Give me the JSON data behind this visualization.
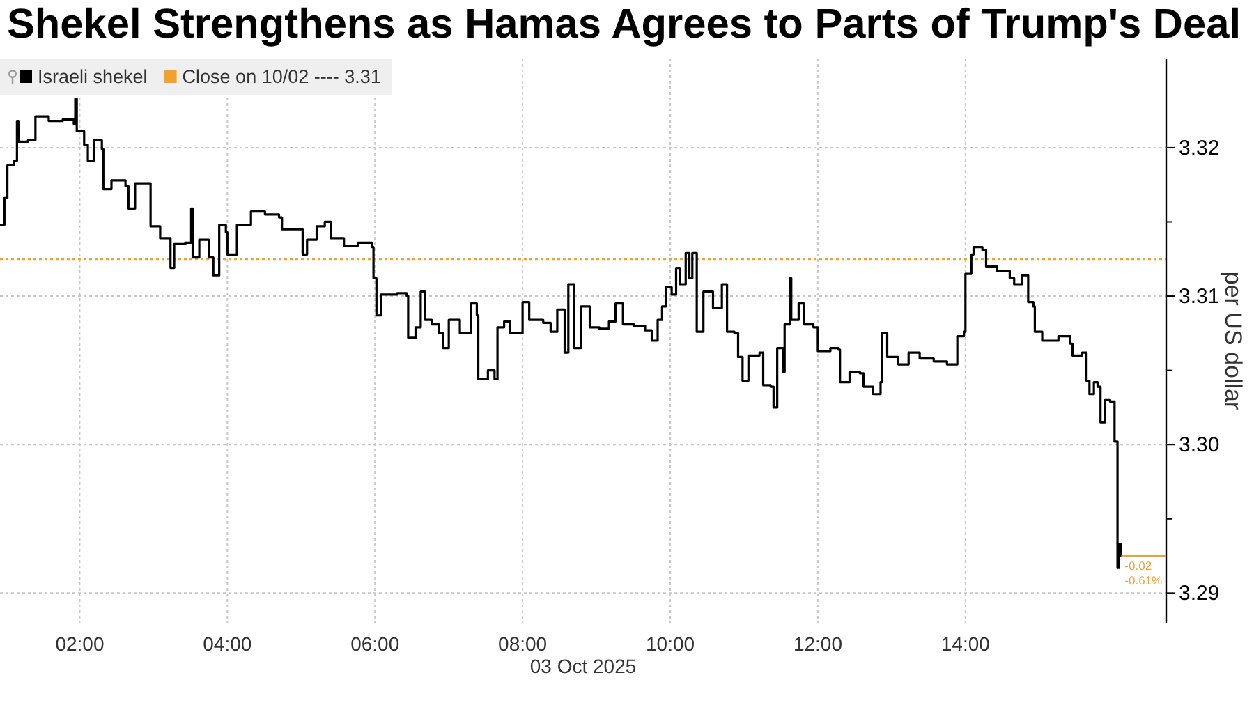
{
  "chart_data": {
    "type": "step",
    "title": "Shekel Strengthens as Hamas Agrees to Parts of Trump's Deal",
    "xlabel": "03 Oct 2025",
    "ylabel": "per US dollar",
    "x": [
      0.92,
      0.98,
      1.02,
      1.11,
      1.15,
      1.17,
      1.3,
      1.4,
      1.58,
      1.77,
      1.92,
      1.94,
      1.96,
      2.06,
      2.11,
      2.19,
      2.3,
      2.32,
      2.43,
      2.62,
      2.66,
      2.75,
      2.94,
      2.96,
      3.09,
      3.23,
      3.28,
      3.43,
      3.51,
      3.53,
      3.62,
      3.75,
      3.81,
      3.89,
      3.98,
      4.0,
      4.13,
      4.32,
      4.51,
      4.7,
      4.74,
      4.94,
      5.02,
      5.08,
      5.21,
      5.32,
      5.4,
      5.58,
      5.77,
      5.96,
      5.98,
      6.02,
      6.08,
      6.3,
      6.43,
      6.45,
      6.55,
      6.62,
      6.68,
      6.77,
      6.87,
      6.92,
      7.0,
      7.15,
      7.3,
      7.38,
      7.4,
      7.53,
      7.62,
      7.66,
      7.75,
      7.83,
      7.96,
      8.0,
      8.09,
      8.28,
      8.38,
      8.47,
      8.57,
      8.62,
      8.7,
      8.79,
      8.91,
      9.04,
      9.17,
      9.26,
      9.36,
      9.51,
      9.66,
      9.75,
      9.83,
      9.89,
      9.94,
      10.02,
      10.08,
      10.13,
      10.21,
      10.26,
      10.3,
      10.36,
      10.45,
      10.58,
      10.7,
      10.77,
      10.87,
      10.92,
      10.98,
      11.06,
      11.21,
      11.26,
      11.36,
      11.4,
      11.45,
      11.53,
      11.55,
      11.62,
      11.64,
      11.74,
      11.81,
      11.94,
      12.0,
      12.17,
      12.28,
      12.3,
      12.43,
      12.57,
      12.62,
      12.75,
      12.85,
      12.87,
      12.94,
      13.09,
      13.23,
      13.38,
      13.57,
      13.75,
      13.87,
      13.89,
      13.98,
      14.0,
      14.08,
      14.11,
      14.23,
      14.28,
      14.43,
      14.6,
      14.66,
      14.77,
      14.85,
      14.92,
      14.94,
      15.04,
      15.26,
      15.42,
      15.45,
      15.58,
      15.64,
      15.68,
      15.74,
      15.79,
      15.83,
      15.89,
      15.96,
      16.02,
      16.06,
      16.08,
      16.11
    ],
    "series": [
      {
        "name": "Israeli shekel",
        "color": "#000000",
        "values": [
          3.3148,
          3.3166,
          3.3188,
          3.3191,
          3.3218,
          3.3204,
          3.3205,
          3.3221,
          3.3218,
          3.3219,
          3.3216,
          3.3233,
          3.3211,
          3.3202,
          3.3191,
          3.3205,
          3.3199,
          3.3172,
          3.3178,
          3.3174,
          3.3159,
          3.3176,
          3.3176,
          3.3147,
          3.3139,
          3.3119,
          3.3135,
          3.3136,
          3.3159,
          3.3126,
          3.3138,
          3.3126,
          3.3114,
          3.3148,
          3.3143,
          3.3128,
          3.3148,
          3.3157,
          3.3155,
          3.3153,
          3.3145,
          3.3145,
          3.3128,
          3.3138,
          3.3147,
          3.315,
          3.3139,
          3.3134,
          3.3136,
          3.3133,
          3.3112,
          3.3087,
          3.3101,
          3.3102,
          3.31,
          3.3072,
          3.3079,
          3.3103,
          3.3084,
          3.3081,
          3.3075,
          3.3065,
          3.3084,
          3.3075,
          3.3095,
          3.3087,
          3.3044,
          3.305,
          3.3044,
          3.3079,
          3.3083,
          3.3075,
          3.3075,
          3.3096,
          3.3084,
          3.3082,
          3.3076,
          3.3091,
          3.3062,
          3.3108,
          3.3065,
          3.3093,
          3.3079,
          3.3078,
          3.3083,
          3.3095,
          3.3081,
          3.308,
          3.3077,
          3.307,
          3.3084,
          3.3093,
          3.3106,
          3.3101,
          3.3119,
          3.3108,
          3.3129,
          3.3112,
          3.3129,
          3.3076,
          3.3103,
          3.3092,
          3.3108,
          3.3076,
          3.3075,
          3.3059,
          3.3043,
          3.306,
          3.3062,
          3.304,
          3.3039,
          3.3025,
          3.3065,
          3.3049,
          3.3081,
          3.3112,
          3.3084,
          3.3095,
          3.3081,
          3.3079,
          3.3063,
          3.3065,
          3.3064,
          3.3042,
          3.3049,
          3.3048,
          3.3039,
          3.3034,
          3.3042,
          3.3075,
          3.3059,
          3.3054,
          3.3062,
          3.3058,
          3.3056,
          3.3054,
          3.3054,
          3.3073,
          3.3076,
          3.3115,
          3.3128,
          3.3133,
          3.3131,
          3.312,
          3.3117,
          3.3112,
          3.3108,
          3.3114,
          3.3096,
          3.3093,
          3.3076,
          3.307,
          3.3073,
          3.3068,
          3.306,
          3.3062,
          3.3043,
          3.3034,
          3.3042,
          3.3039,
          3.3015,
          3.303,
          3.3029,
          3.3002,
          3.2917,
          3.2933,
          3.2925
        ]
      }
    ],
    "xlim": [
      0.92,
      16.72
    ],
    "ylim": [
      3.288,
      3.326
    ],
    "xticks": [
      {
        "value": 2,
        "label": "02:00"
      },
      {
        "value": 4,
        "label": "04:00"
      },
      {
        "value": 6,
        "label": "06:00"
      },
      {
        "value": 8,
        "label": "08:00"
      },
      {
        "value": 10,
        "label": "10:00"
      },
      {
        "value": 12,
        "label": "12:00"
      },
      {
        "value": 14,
        "label": "14:00"
      }
    ],
    "yticks": [
      3.29,
      {
        "value": 3.295,
        "label": null
      },
      {
        "value": 3.3,
        "label": "3.30"
      },
      {
        "value": 3.305,
        "label": null
      },
      3.31,
      {
        "value": 3.315,
        "label": null
      },
      3.32
    ],
    "grid": true,
    "legend": "top left",
    "ref_lines": [
      {
        "axis": "y",
        "value": 3.3125,
        "label": "Close on 10/02 ---- 3.31",
        "color": "#f0a22e",
        "line_style": "dotted"
      }
    ],
    "annotations": [
      {
        "text": "-0.02",
        "x": 16.11,
        "y": 3.2925
      },
      {
        "text": "-0.61%",
        "x": 16.11,
        "y": 3.2925
      }
    ]
  }
}
